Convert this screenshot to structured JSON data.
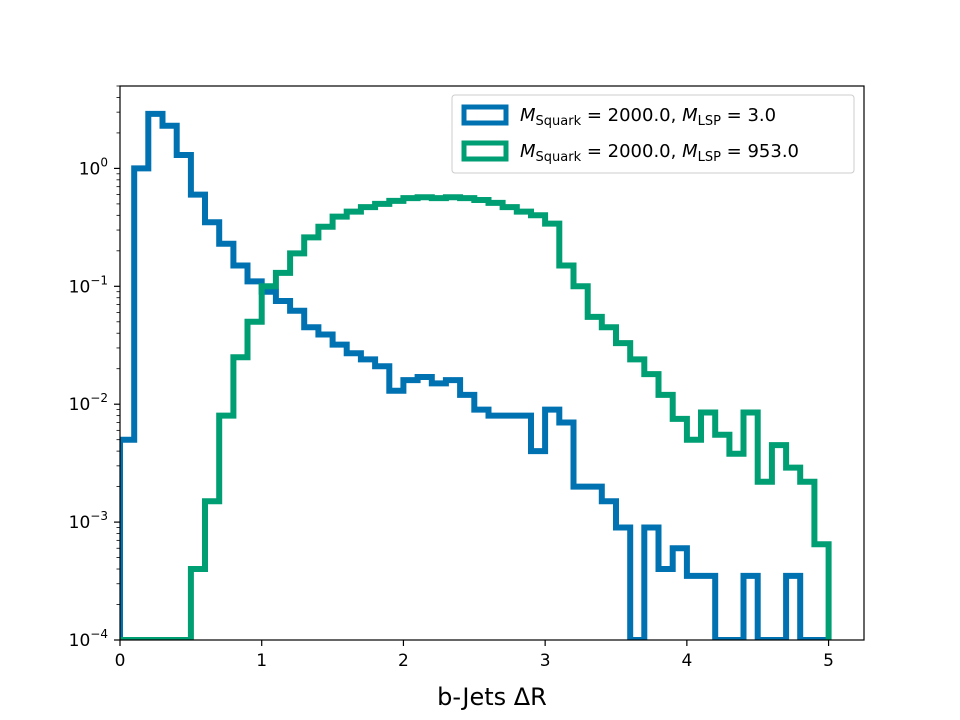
{
  "chart_data": {
    "type": "step-histogram",
    "xlabel": "b-Jets ΔR",
    "ylabel": "",
    "yscale": "log",
    "xlim": [
      0,
      5.25
    ],
    "ylim": [
      0.0001,
      5
    ],
    "xticks": [
      0,
      1,
      2,
      3,
      4,
      5
    ],
    "xtick_labels": [
      "0",
      "1",
      "2",
      "3",
      "4",
      "5"
    ],
    "yticks": [
      0.0001,
      0.001,
      0.01,
      0.1,
      1
    ],
    "ytick_labels": [
      {
        "base": "10",
        "exp": "−4"
      },
      {
        "base": "10",
        "exp": "−3"
      },
      {
        "base": "10",
        "exp": "−2"
      },
      {
        "base": "10",
        "exp": "−1"
      },
      {
        "base": "10",
        "exp": "0"
      }
    ],
    "legend_position": "top-right",
    "bin_edges": [
      0,
      0.1,
      0.2,
      0.3,
      0.4,
      0.5,
      0.6,
      0.7,
      0.8,
      0.9,
      1.0,
      1.1,
      1.2,
      1.3,
      1.4,
      1.5,
      1.6,
      1.7,
      1.8,
      1.9,
      2.0,
      2.1,
      2.2,
      2.3,
      2.4,
      2.5,
      2.6,
      2.7,
      2.8,
      2.9,
      3.0,
      3.1,
      3.2,
      3.3,
      3.4,
      3.5,
      3.6,
      3.7,
      3.8,
      3.9,
      4.0,
      4.1,
      4.2,
      4.3,
      4.4,
      4.5,
      4.6,
      4.7,
      4.8,
      4.9,
      5.0
    ],
    "series": [
      {
        "name_main": "M",
        "name_sub": "Squark",
        "name_mid": " = 2000.0, ",
        "name_main2": "M",
        "name_sub2": "LSP",
        "name_end": " = 3.0",
        "color": "#0072b2",
        "values": [
          0.005,
          1.0,
          2.9,
          2.3,
          1.3,
          0.6,
          0.35,
          0.23,
          0.15,
          0.11,
          0.09,
          0.075,
          0.062,
          0.045,
          0.039,
          0.032,
          0.027,
          0.024,
          0.021,
          0.013,
          0.016,
          0.017,
          0.015,
          0.016,
          0.012,
          0.009,
          0.008,
          0.008,
          0.008,
          0.004,
          0.009,
          0.007,
          0.002,
          0.002,
          0.0015,
          0.0009,
          0.0001,
          0.0009,
          0.0004,
          0.0006,
          0.00035,
          0.00035,
          0.0001,
          0.0001,
          0.00035,
          0.0001,
          0.0001,
          0.00035,
          0.0001,
          0.0001
        ]
      },
      {
        "name_main": "M",
        "name_sub": "Squark",
        "name_mid": " = 2000.0, ",
        "name_main2": "M",
        "name_sub2": "LSP",
        "name_end": " = 953.0",
        "color": "#009e73",
        "values": [
          0.0001,
          0.0001,
          0.0001,
          0.0001,
          0.0001,
          0.0004,
          0.0015,
          0.008,
          0.025,
          0.05,
          0.1,
          0.13,
          0.19,
          0.26,
          0.32,
          0.39,
          0.43,
          0.47,
          0.5,
          0.53,
          0.56,
          0.57,
          0.56,
          0.57,
          0.56,
          0.54,
          0.51,
          0.47,
          0.43,
          0.4,
          0.34,
          0.15,
          0.1,
          0.055,
          0.045,
          0.033,
          0.024,
          0.018,
          0.012,
          0.0075,
          0.005,
          0.0085,
          0.0055,
          0.0038,
          0.0085,
          0.0022,
          0.0045,
          0.0029,
          0.0022,
          0.00065
        ]
      }
    ]
  }
}
